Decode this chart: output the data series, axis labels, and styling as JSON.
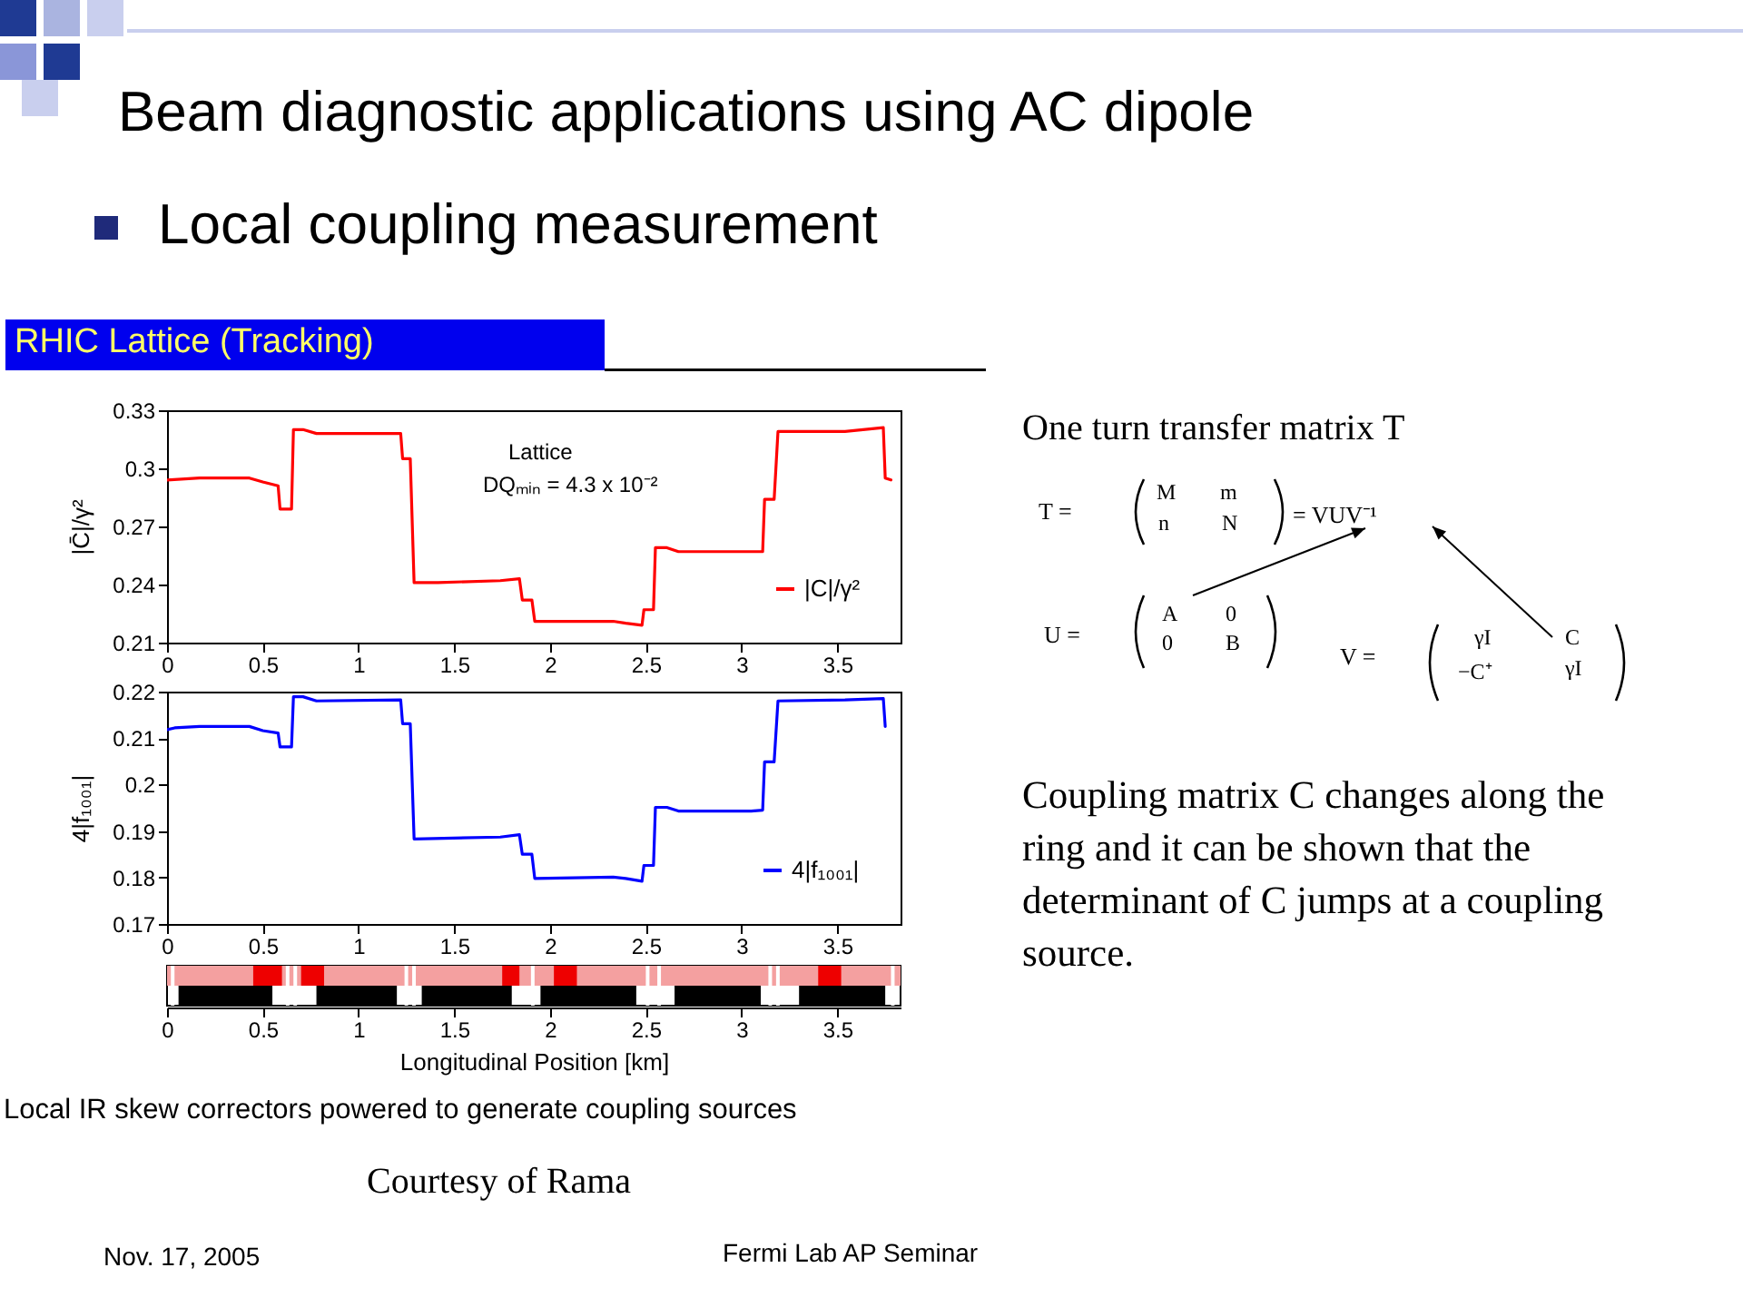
{
  "chart_data": [
    {
      "type": "line",
      "title": "Beam diagnostic applications using AC dipole",
      "subtitle": "Local coupling measurement",
      "ylabel": "|C̄|/γ²",
      "legend": "bottom right",
      "xlim": [
        0,
        3.83
      ],
      "xticks": [
        0,
        0.5,
        1,
        1.5,
        2,
        2.5,
        3,
        3.5
      ],
      "ylim": [
        0.21,
        0.33
      ],
      "yticks": [
        0.21,
        0.24,
        0.27,
        0.3,
        0.33
      ],
      "annotations": [
        "RHIC Lattice (Tracking)",
        "Lattice",
        "DQₘᵢₙ = 4.3 x 10⁻²",
        "One turn transfer matrix T",
        "T =",
        "M",
        "m",
        "n",
        "N",
        "= VUV⁻¹",
        "U =",
        "A",
        "0",
        "0",
        "B",
        "V =",
        "γI",
        "C",
        "−C⁺",
        "γI",
        "Coupling matrix C changes along the ring and it can be shown that the determinant of C jumps at a coupling source.",
        "Nov. 17, 2005",
        "Fermi Lab AP Seminar"
      ],
      "series": [
        {
          "name": "|C|/γ²",
          "color": "#ff0000",
          "x": [
            0,
            0.17,
            0.43,
            0.5,
            0.58,
            0.59,
            0.65,
            0.66,
            0.71,
            0.78,
            1.09,
            1.14,
            1.22,
            1.23,
            1.27,
            1.29,
            1.415,
            1.74,
            1.84,
            1.855,
            1.905,
            1.92,
            2.33,
            2.395,
            2.48,
            2.49,
            2.54,
            2.55,
            2.61,
            2.67,
            3.05,
            3.11,
            3.12,
            3.17,
            3.19,
            3.28,
            3.54,
            3.74,
            3.75,
            3.78
          ],
          "values": [
            0.294,
            0.295,
            0.295,
            0.293,
            0.291,
            0.279,
            0.279,
            0.32,
            0.32,
            0.318,
            0.318,
            0.318,
            0.318,
            0.305,
            0.305,
            0.241,
            0.241,
            0.242,
            0.243,
            0.232,
            0.232,
            0.221,
            0.221,
            0.22,
            0.219,
            0.227,
            0.227,
            0.259,
            0.259,
            0.257,
            0.257,
            0.257,
            0.284,
            0.284,
            0.319,
            0.319,
            0.319,
            0.321,
            0.295,
            0.294
          ]
        }
      ]
    },
    {
      "type": "line",
      "ylabel": "4|f₁₀₀₁|",
      "xlabel": "Longitudinal Position [km]",
      "legend": "bottom right",
      "xlim": [
        0,
        3.83
      ],
      "xticks": [
        0,
        0.5,
        1,
        1.5,
        2,
        2.5,
        3,
        3.5
      ],
      "x2lim": [
        0,
        3.83
      ],
      "x2ticks": [
        0,
        0.5,
        1,
        1.5,
        2,
        2.5,
        3,
        3.5
      ],
      "ylim": [
        0.17,
        0.22
      ],
      "yticks": [
        0.17,
        0.18,
        0.19,
        0.2,
        0.21,
        0.22
      ],
      "annotations": [
        "Local IR skew correctors powered to generate coupling sources",
        "Courtesy of Rama"
      ],
      "series": [
        {
          "name": "4|f₁₀₀₁|",
          "color": "#0000ff",
          "x": [
            0,
            0.04,
            0.17,
            0.43,
            0.5,
            0.58,
            0.59,
            0.65,
            0.66,
            0.71,
            0.78,
            1.22,
            1.23,
            1.27,
            1.29,
            1.74,
            1.84,
            1.855,
            1.905,
            1.92,
            2.33,
            2.395,
            2.48,
            2.49,
            2.54,
            2.55,
            2.61,
            2.67,
            3.05,
            3.11,
            3.12,
            3.17,
            3.19,
            3.54,
            3.74,
            3.75
          ],
          "values": [
            0.2118,
            0.2122,
            0.2125,
            0.2125,
            0.2116,
            0.2111,
            0.2081,
            0.2081,
            0.2189,
            0.2189,
            0.218,
            0.2182,
            0.2131,
            0.2131,
            0.1883,
            0.1887,
            0.1892,
            0.185,
            0.185,
            0.1798,
            0.1801,
            0.1798,
            0.1792,
            0.1826,
            0.1826,
            0.1951,
            0.1951,
            0.1943,
            0.1943,
            0.1945,
            0.2049,
            0.2049,
            0.218,
            0.2182,
            0.2185,
            0.2125
          ]
        }
      ]
    }
  ]
}
